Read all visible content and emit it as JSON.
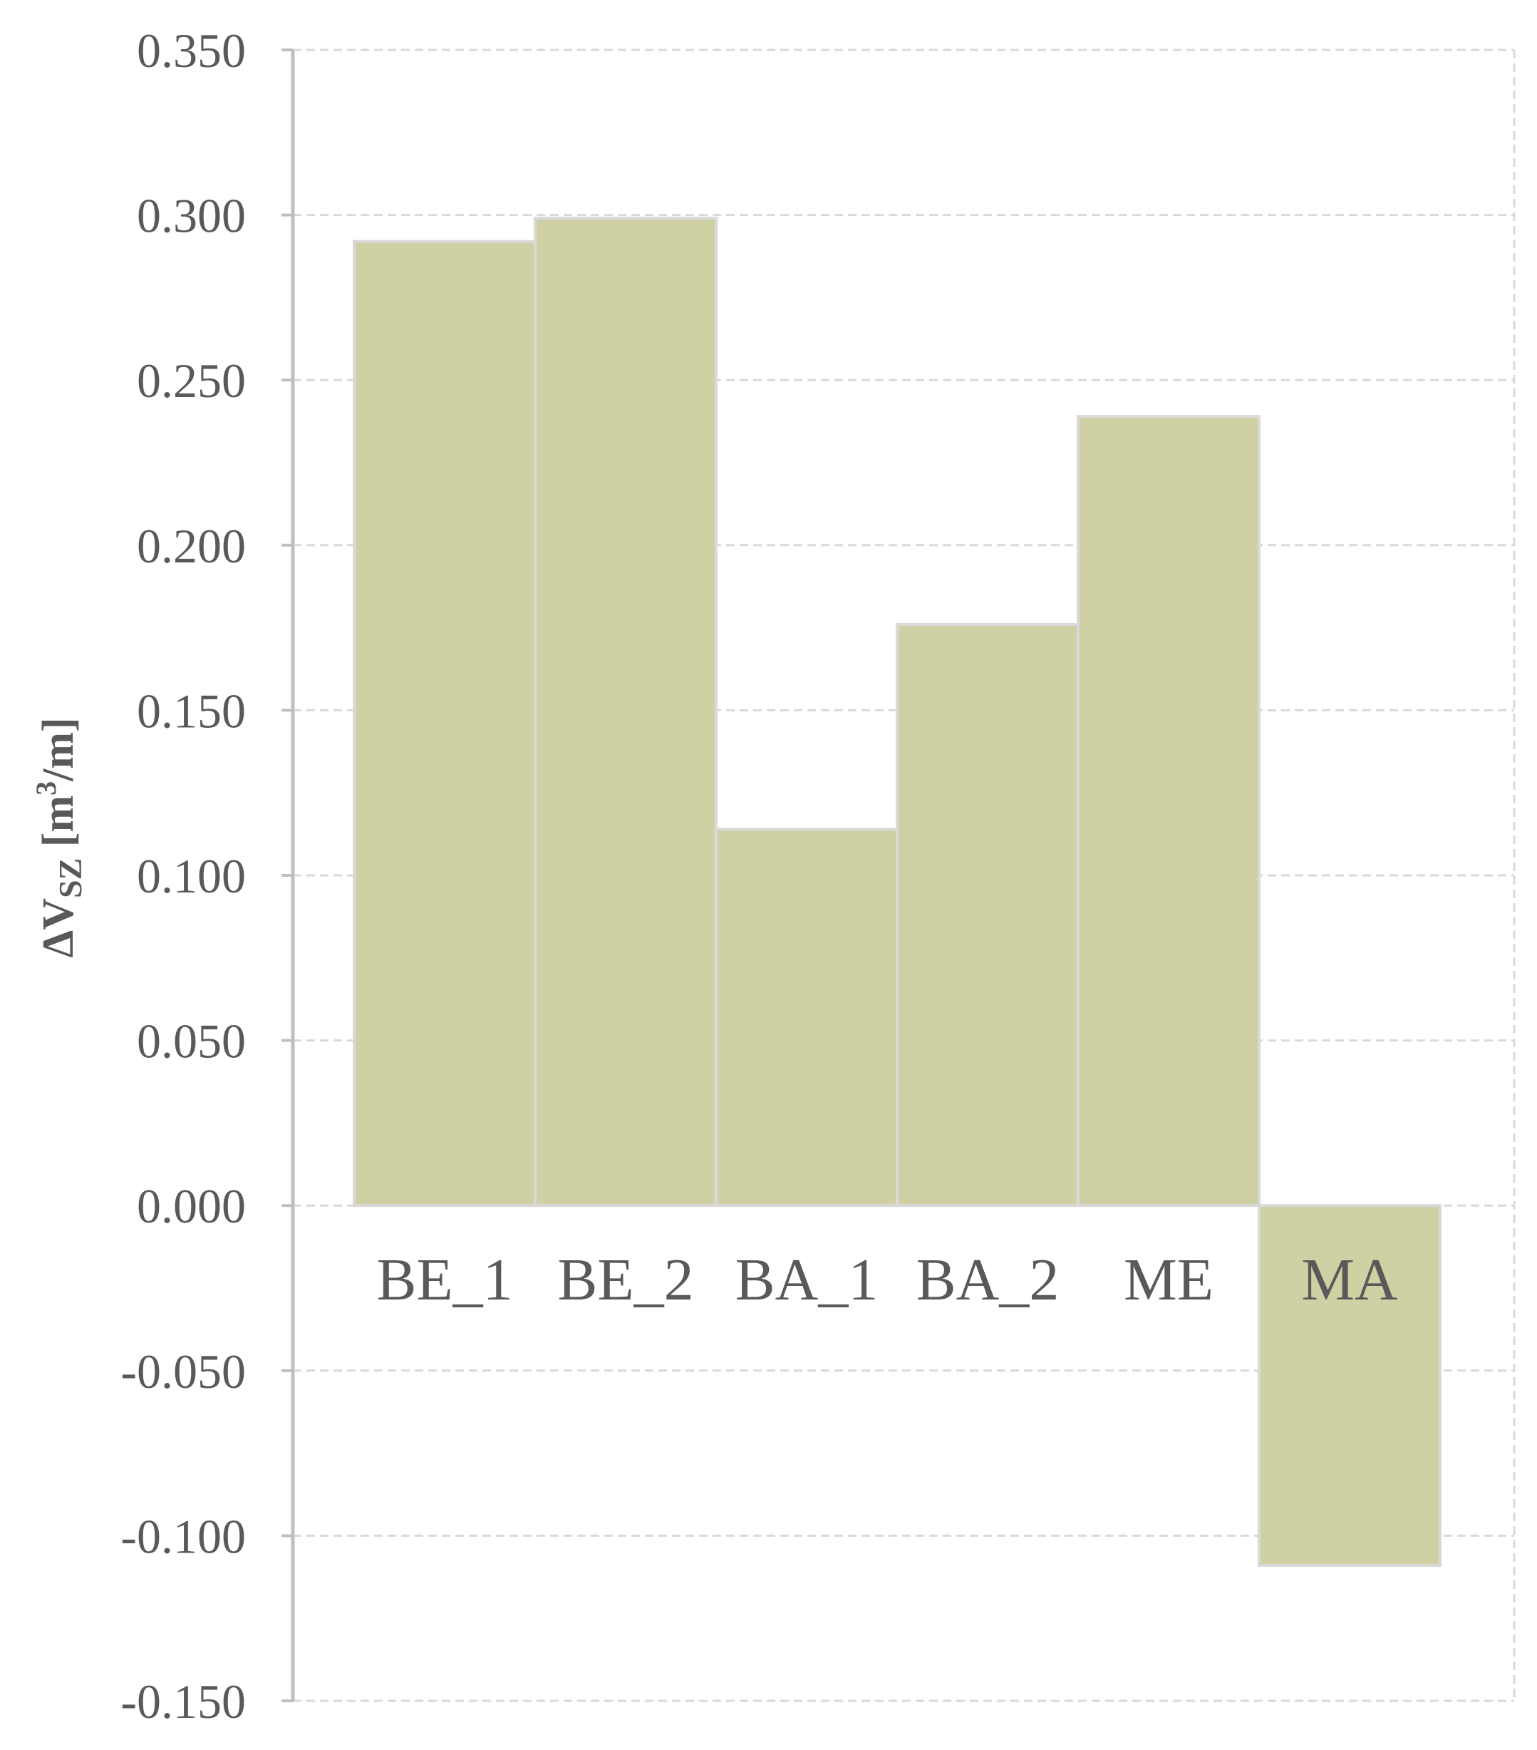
{
  "chart_data": {
    "type": "bar",
    "title": "",
    "xlabel": "",
    "ylabel": {
      "prefix": "ΔV",
      "subscript": "SZ",
      "unit_open": " [m",
      "unit_sup": "3",
      "unit_close": "/m]"
    },
    "categories": [
      "BE_1",
      "BE_2",
      "BA_1",
      "BA_2",
      "ME",
      "MA"
    ],
    "values": [
      0.292,
      0.299,
      0.114,
      0.176,
      0.239,
      -0.109
    ],
    "ylim": [
      -0.15,
      0.35
    ],
    "yticks": [
      -0.15,
      -0.1,
      -0.05,
      0.0,
      0.05,
      0.1,
      0.15,
      0.2,
      0.25,
      0.3,
      0.35
    ],
    "ytick_labels": [
      "-0.150",
      "-0.100",
      "-0.050",
      "0.000",
      "0.050",
      "0.100",
      "0.150",
      "0.200",
      "0.250",
      "0.300",
      "0.350"
    ],
    "grid": true,
    "legend": "none",
    "colors": {
      "bar_fill": "#cfd0a4",
      "bar_stroke": "#d9d9d9",
      "grid": "#d9d9d9",
      "axis": "#bfbfbf",
      "text": "#595959"
    }
  }
}
